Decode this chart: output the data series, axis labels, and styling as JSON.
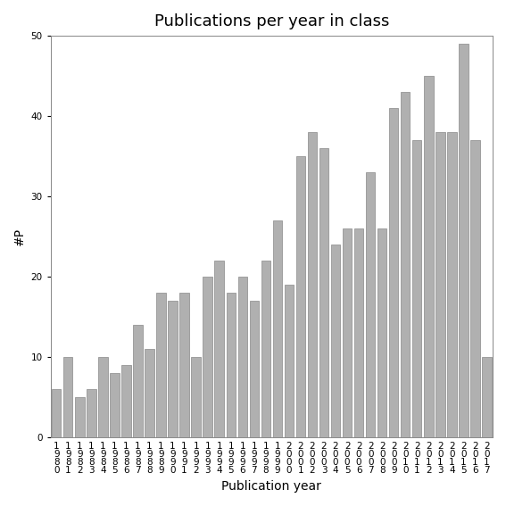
{
  "title": "Publications per year in class",
  "xlabel": "Publication year",
  "ylabel": "#P",
  "years": [
    1980,
    1981,
    1982,
    1983,
    1984,
    1985,
    1986,
    1987,
    1988,
    1989,
    1990,
    1991,
    1992,
    1993,
    1994,
    1995,
    1996,
    1997,
    1998,
    1999,
    2000,
    2001,
    2002,
    2003,
    2004,
    2005,
    2006,
    2007,
    2008,
    2009,
    2010,
    2011,
    2012,
    2013,
    2014,
    2015,
    2016,
    2017
  ],
  "values": [
    6,
    10,
    5,
    6,
    10,
    8,
    9,
    14,
    11,
    18,
    17,
    18,
    10,
    20,
    22,
    18,
    20,
    17,
    22,
    27,
    19,
    35,
    38,
    36,
    24,
    26,
    26,
    33,
    26,
    41,
    43,
    37,
    45,
    38,
    38,
    49,
    37,
    10
  ],
  "bar_color": "#b0b0b0",
  "bar_edgecolor": "#888888",
  "ylim": [
    0,
    50
  ],
  "yticks": [
    0,
    10,
    20,
    30,
    40,
    50
  ],
  "background_color": "#ffffff",
  "title_fontsize": 13,
  "axis_label_fontsize": 10,
  "tick_fontsize": 7.5
}
